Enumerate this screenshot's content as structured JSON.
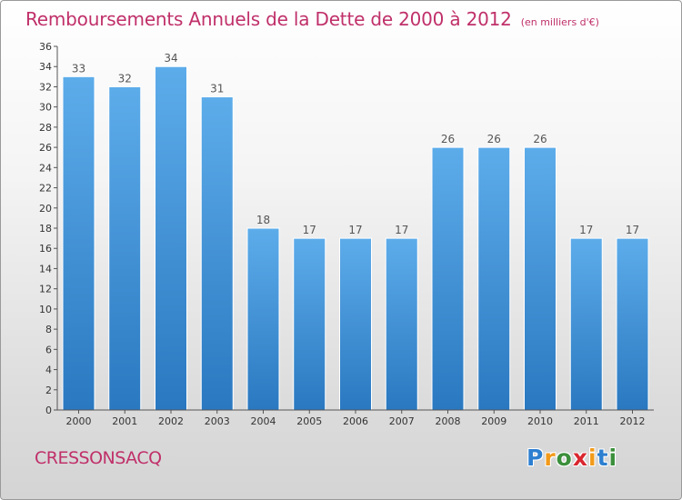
{
  "title": "Remboursements Annuels de la Dette de 2000 à 2012",
  "unit": "(en milliers d'€)",
  "commune": "CRESSONSACQ",
  "logo": {
    "letters": [
      "P",
      "r",
      "o",
      "x",
      "i",
      "t",
      "i"
    ],
    "colors": [
      "#2d7fd0",
      "#f29a1a",
      "#3b8f3b",
      "#d9262f",
      "#f29a1a",
      "#2d7fd0",
      "#3b8f3b"
    ]
  },
  "colors": {
    "bar_light": "#5dacea",
    "bar_dark": "#2a78c0",
    "title": "#c0306a",
    "axis": "#555555"
  },
  "chart_data": {
    "type": "bar",
    "categories": [
      "2000",
      "2001",
      "2002",
      "2003",
      "2004",
      "2005",
      "2006",
      "2007",
      "2008",
      "2009",
      "2010",
      "2011",
      "2012"
    ],
    "values": [
      33,
      32,
      34,
      31,
      18,
      17,
      17,
      17,
      26,
      26,
      26,
      17,
      17
    ],
    "ylim": [
      0,
      36
    ],
    "yticks": [
      0,
      2,
      4,
      6,
      8,
      10,
      12,
      14,
      16,
      18,
      20,
      22,
      24,
      26,
      28,
      30,
      32,
      34,
      36
    ],
    "grid": false,
    "data_labels": true
  }
}
